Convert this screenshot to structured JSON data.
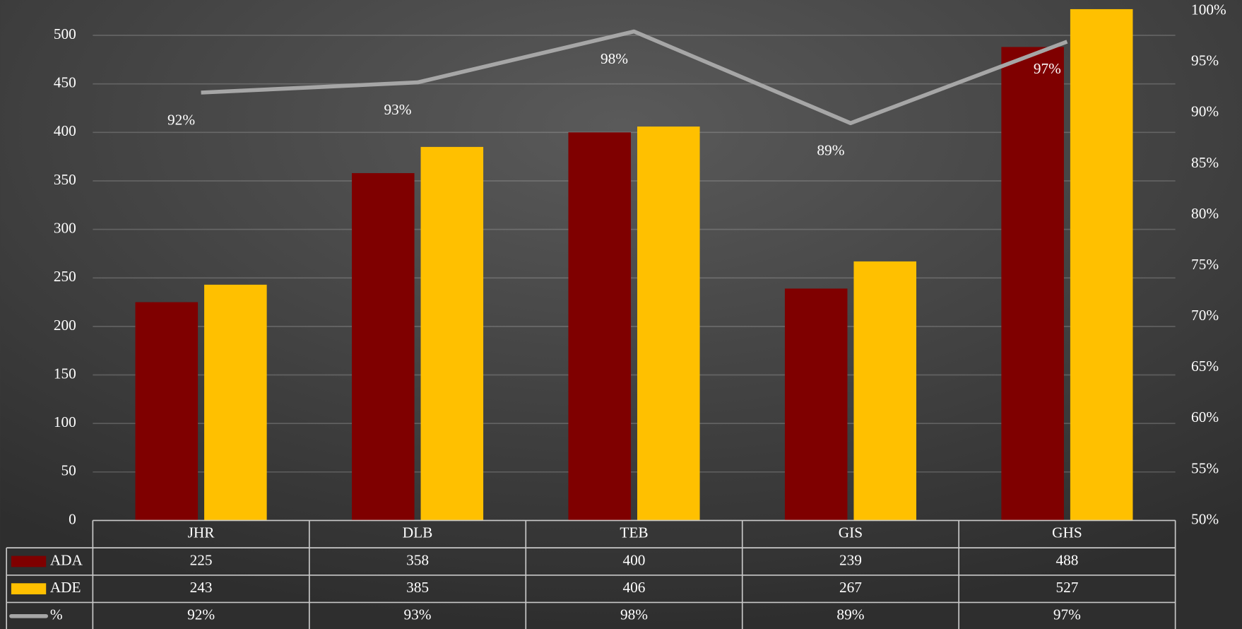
{
  "chart_data": {
    "type": "bar",
    "categories": [
      "JHR",
      "DLB",
      "TEB",
      "GIS",
      "GHS"
    ],
    "series": [
      {
        "name": "ADA",
        "color": "#7f0000",
        "values": [
          225,
          358,
          400,
          239,
          488
        ]
      },
      {
        "name": "ADE",
        "color": "#ffc000",
        "values": [
          243,
          385,
          406,
          267,
          527
        ]
      },
      {
        "name": "%",
        "type": "line",
        "axis": "y2",
        "color": "#a6a6a6",
        "values": [
          92,
          93,
          98,
          89,
          97
        ],
        "value_labels": [
          "92%",
          "93%",
          "98%",
          "89%",
          "97%"
        ]
      }
    ],
    "ylim": [
      0,
      525
    ],
    "yticks": [
      0,
      50,
      100,
      150,
      200,
      250,
      300,
      350,
      400,
      450,
      500
    ],
    "y2lim": [
      50,
      100
    ],
    "y2ticks": [
      {
        "value": 50,
        "label": "50%"
      },
      {
        "value": 55,
        "label": "55%"
      },
      {
        "value": 60,
        "label": "60%"
      },
      {
        "value": 65,
        "label": "65%"
      },
      {
        "value": 70,
        "label": "70%"
      },
      {
        "value": 75,
        "label": "75%"
      },
      {
        "value": 80,
        "label": "80%"
      },
      {
        "value": 85,
        "label": "85%"
      },
      {
        "value": 90,
        "label": "90%"
      },
      {
        "value": 95,
        "label": "95%"
      },
      {
        "value": 100,
        "label": "100%"
      }
    ],
    "grid": true,
    "data_table": true
  }
}
